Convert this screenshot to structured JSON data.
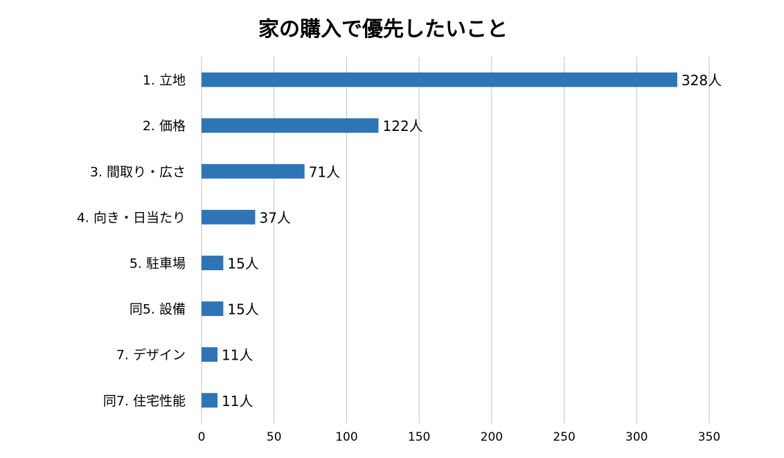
{
  "chart_data": {
    "type": "bar",
    "orientation": "horizontal",
    "title": "家の購入で優先したいこと",
    "xlabel": "",
    "ylabel": "",
    "categories": [
      "1. 立地",
      "2. 価格",
      "3. 間取り・広さ",
      "4. 向き・日当たり",
      "5. 駐車場",
      "同5. 設備",
      "7. デザイン",
      "同7. 住宅性能"
    ],
    "values": [
      328,
      122,
      71,
      37,
      15,
      15,
      11,
      11
    ],
    "value_labels": [
      "328人",
      "122人",
      "71人",
      "37人",
      "15人",
      "15人",
      "11人",
      "11人"
    ],
    "xlim": [
      0,
      350
    ],
    "ticks": [
      "0",
      "50",
      "100",
      "150",
      "200",
      "250",
      "300",
      "350"
    ],
    "grid": true,
    "bar_color": "#2e75b6"
  }
}
